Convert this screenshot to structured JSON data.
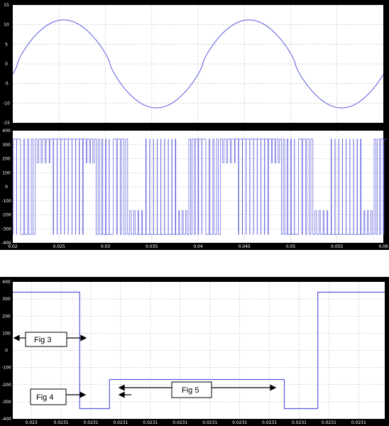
{
  "colors": {
    "frame": "#000000",
    "plot_bg": "#ffffff",
    "signal": "#5a5adf",
    "grid": "#b8b8b8",
    "tick_text": "#ffffff"
  },
  "chart_data": [
    {
      "type": "line",
      "panel": "top-1",
      "xlim": [
        0.02,
        0.06
      ],
      "ylim": [
        -15,
        15
      ],
      "xticks": [
        0.02,
        0.025,
        0.03,
        0.035,
        0.04,
        0.045,
        0.05,
        0.055,
        0.06
      ],
      "yticks": [
        "15",
        "10",
        "5",
        "0",
        "-5",
        "-10",
        "-15"
      ],
      "series": [
        {
          "frequency_hz": 50,
          "amplitude": 11.2,
          "phase_deg": -9,
          "flattening_near_zero": true
        }
      ]
    },
    {
      "type": "line",
      "panel": "top-2",
      "xlim": [
        0.02,
        0.06
      ],
      "ylim": [
        -400,
        400
      ],
      "xticks": [
        "0.02",
        "0.025",
        "0.03",
        "0.035",
        "0.04",
        "0.045",
        "0.05",
        "0.055",
        "0.06"
      ],
      "yticks": [
        "400",
        "300",
        "200",
        "100",
        "0",
        "-100",
        "-200",
        "-300",
        "-400"
      ],
      "series": [
        {
          "kind": "pwm",
          "levels": [
            340,
            170,
            -170,
            -340
          ],
          "pulse_period": 0.0004
        }
      ]
    },
    {
      "type": "line",
      "panel": "bottom",
      "ylim": [
        -400,
        400
      ],
      "xticks": [
        "0.023",
        "0.0231",
        "0.0231",
        "0.0231",
        "0.0231",
        "0.0231",
        "0.0231",
        "0.0231",
        "0.0231",
        "0.0231",
        "0.0231",
        "0.0231"
      ],
      "yticks": [
        "400",
        "300",
        "200",
        "100",
        "0",
        "-100",
        "-200",
        "-300",
        "-400"
      ],
      "series": [
        {
          "steps": [
            [
              0,
              340
            ],
            [
              0.18,
              -340
            ],
            [
              0.26,
              -170
            ],
            [
              0.73,
              -340
            ],
            [
              0.82,
              340
            ],
            [
              1.0,
              340
            ]
          ]
        }
      ],
      "annotations": [
        {
          "label": "Fig 3"
        },
        {
          "label": "Fig 4"
        },
        {
          "label": "Fig 5"
        }
      ]
    }
  ]
}
